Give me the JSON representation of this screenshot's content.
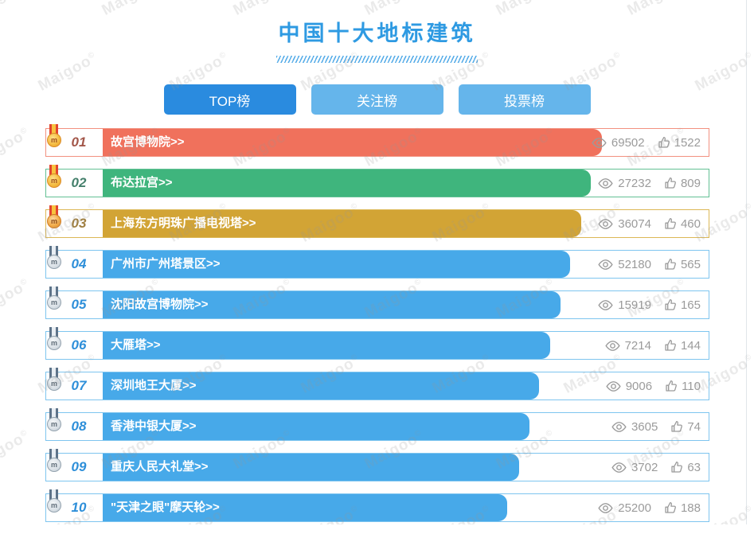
{
  "header": {
    "title": "中国十大地标建筑"
  },
  "tabs": [
    {
      "label": "TOP榜",
      "active": true
    },
    {
      "label": "关注榜",
      "active": false
    },
    {
      "label": "投票榜",
      "active": false
    }
  ],
  "watermark": {
    "text": "Maigoo",
    "mark": "©"
  },
  "icons": {
    "medal_face": "m",
    "views_icon": "eye",
    "likes_icon": "thumb-up"
  },
  "colors": {
    "title": "#2e9ae2",
    "tab_active": "#2a8bdf",
    "tab_inactive": "#65b5eb",
    "bar_rank1": "#f0715c",
    "bar_rank2": "#3fb57d",
    "bar_rank3": "#d2a435",
    "bar_default": "#47a9e9",
    "stats_text": "#9b9b9b"
  },
  "list": {
    "rows": [
      {
        "rank": "01",
        "name": "故宫博物院>>",
        "views": "69502",
        "likes": "1522",
        "bar_pct": 75.4,
        "theme": "red",
        "medal": "gold"
      },
      {
        "rank": "02",
        "name": "布达拉宫>>",
        "views": "27232",
        "likes": "809",
        "bar_pct": 73.7,
        "theme": "green",
        "medal": "gold"
      },
      {
        "rank": "03",
        "name": "上海东方明珠广播电视塔>>",
        "views": "36074",
        "likes": "460",
        "bar_pct": 72.2,
        "theme": "gold",
        "medal": "bronze"
      },
      {
        "rank": "04",
        "name": "广州市广州塔景区>>",
        "views": "52180",
        "likes": "565",
        "bar_pct": 70.5,
        "theme": "blue",
        "medal": "silver"
      },
      {
        "rank": "05",
        "name": "沈阳故宫博物院>>",
        "views": "15919",
        "likes": "165",
        "bar_pct": 69.1,
        "theme": "blue",
        "medal": "silver"
      },
      {
        "rank": "06",
        "name": "大雁塔>>",
        "views": "7214",
        "likes": "144",
        "bar_pct": 67.5,
        "theme": "blue",
        "medal": "silver"
      },
      {
        "rank": "07",
        "name": "深圳地王大厦>>",
        "views": "9006",
        "likes": "110",
        "bar_pct": 65.9,
        "theme": "blue",
        "medal": "silver"
      },
      {
        "rank": "08",
        "name": "香港中银大厦>>",
        "views": "3605",
        "likes": "74",
        "bar_pct": 64.4,
        "theme": "blue",
        "medal": "silver"
      },
      {
        "rank": "09",
        "name": "重庆人民大礼堂>>",
        "views": "3702",
        "likes": "63",
        "bar_pct": 62.9,
        "theme": "blue",
        "medal": "silver"
      },
      {
        "rank": "10",
        "name": "\"天津之眼\"摩天轮>>",
        "views": "25200",
        "likes": "188",
        "bar_pct": 61.1,
        "theme": "blue",
        "medal": "silver"
      }
    ]
  }
}
